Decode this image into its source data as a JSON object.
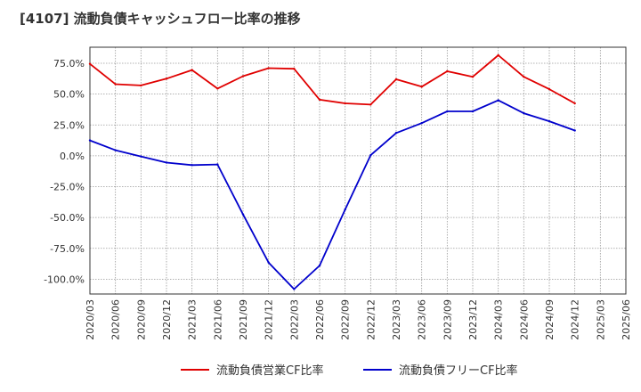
{
  "chart_data": {
    "type": "line",
    "title": "[4107]  流動負債キャッシュフロー比率の推移",
    "x": [
      "2020/03",
      "2020/06",
      "2020/09",
      "2020/12",
      "2021/03",
      "2021/06",
      "2021/09",
      "2021/12",
      "2022/03",
      "2022/06",
      "2022/09",
      "2022/12",
      "2023/03",
      "2023/06",
      "2023/09",
      "2023/12",
      "2024/03",
      "2024/06",
      "2024/09",
      "2024/12",
      "2025/03",
      "2025/06"
    ],
    "series": [
      {
        "name": "流動負債営業CF比率",
        "color": "#e00000",
        "values": [
          74.5,
          58,
          57,
          62.5,
          69.5,
          54.5,
          64.5,
          71,
          70.5,
          45.5,
          42.5,
          41.5,
          62,
          56,
          68.5,
          64,
          81.5,
          64,
          54,
          42.5,
          null,
          null
        ]
      },
      {
        "name": "流動負債フリーCF比率",
        "color": "#0000cc",
        "values": [
          12.5,
          4.5,
          -0.5,
          -5.5,
          -7.5,
          -7,
          -47.5,
          -86.5,
          -108,
          -89,
          -43.5,
          0.5,
          18.5,
          26.5,
          36,
          36,
          45,
          34.5,
          28,
          20.5,
          null,
          null
        ]
      }
    ],
    "y_ticks": [
      "75.0%",
      "50.0%",
      "25.0%",
      "0.0%",
      "-25.0%",
      "-50.0%",
      "-75.0%",
      "-100.0%"
    ],
    "ylim": [
      -112,
      88
    ],
    "xlabel": "",
    "ylabel": "",
    "grid": true,
    "legend_position": "bottom"
  }
}
